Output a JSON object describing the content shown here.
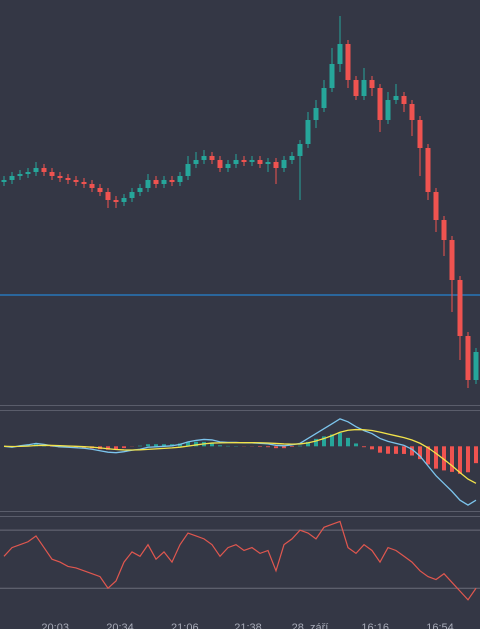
{
  "chart_data": [
    {
      "type": "candlestick",
      "open": [
        54.5,
        55,
        56,
        56.5,
        57,
        58,
        57,
        56,
        55.5,
        55,
        54.5,
        54,
        53,
        52,
        50,
        49.5,
        50.5,
        52,
        53,
        55,
        54,
        55,
        54.5,
        56,
        59,
        60,
        61,
        60,
        58,
        59,
        60,
        59.5,
        60,
        59,
        59.5,
        58,
        60,
        61,
        64,
        70,
        73,
        78,
        84,
        89,
        80,
        76,
        80,
        78,
        70,
        75,
        76,
        74,
        70,
        63,
        52,
        45,
        40,
        30,
        16,
        5
      ],
      "high": [
        56,
        57,
        57.5,
        58,
        59.5,
        59,
        58,
        57,
        56.5,
        56,
        55.5,
        55,
        54,
        53,
        51,
        51.5,
        53,
        54,
        56.5,
        56,
        56,
        56,
        57,
        61,
        62,
        62.5,
        62,
        61,
        60,
        61.5,
        61,
        61,
        61,
        60.5,
        60.5,
        61,
        62,
        65,
        72,
        75,
        80,
        88,
        96,
        90,
        81,
        83,
        81,
        79,
        77,
        79,
        77,
        75,
        71,
        64,
        53,
        46,
        41,
        31,
        17,
        13
      ],
      "low": [
        53.5,
        54,
        55,
        55.5,
        56,
        56,
        55,
        54.5,
        54,
        53.5,
        53,
        52,
        51,
        48,
        48,
        48.5,
        49.5,
        51,
        52,
        53,
        53,
        53.5,
        53.5,
        55,
        58,
        59,
        59,
        57,
        57,
        58,
        58.5,
        58.5,
        58,
        57,
        54,
        57,
        59,
        50,
        63,
        68,
        72,
        77,
        82,
        78,
        75,
        75,
        76,
        67,
        69,
        74,
        72,
        66,
        56,
        50,
        42,
        36,
        22,
        10,
        3,
        4
      ],
      "close": [
        55,
        56,
        56.5,
        57,
        58,
        57,
        56,
        55.5,
        55,
        54.5,
        54,
        53,
        52,
        50,
        49.5,
        50.5,
        52,
        53,
        55,
        54,
        55,
        54.5,
        56,
        59,
        60,
        61,
        60,
        58,
        59,
        60,
        59.5,
        60,
        59,
        59.5,
        58,
        60,
        61,
        64,
        70,
        73,
        78,
        84,
        89,
        80,
        76,
        80,
        78,
        70,
        75,
        76,
        74,
        70,
        63,
        52,
        45,
        40,
        30,
        16,
        5,
        12
      ],
      "up_color": "#26a69a",
      "down_color": "#ef5350",
      "xlim": [
        -0.5,
        59.5
      ],
      "ylim": [
        0,
        100
      ],
      "xticks": [
        {
          "value": 6.4,
          "label": "20:03"
        },
        {
          "value": 14.5,
          "label": "20:34"
        },
        {
          "value": 22.6,
          "label": "21:06"
        },
        {
          "value": 30.5,
          "label": "21:38"
        },
        {
          "value": 38.25,
          "label": "28. září"
        },
        {
          "value": 46.4,
          "label": "16:16"
        },
        {
          "value": 54.5,
          "label": "16:54"
        }
      ],
      "price_line": 26.25,
      "price_line_color": "#2196f3"
    },
    {
      "type": "macd",
      "macd": [
        0,
        -0.1,
        0.05,
        0.15,
        0.3,
        0.2,
        0.05,
        -0.05,
        -0.1,
        -0.15,
        -0.2,
        -0.3,
        -0.45,
        -0.6,
        -0.65,
        -0.55,
        -0.4,
        -0.3,
        -0.1,
        -0.05,
        0,
        0.05,
        0.2,
        0.45,
        0.6,
        0.7,
        0.65,
        0.45,
        0.4,
        0.4,
        0.35,
        0.35,
        0.3,
        0.25,
        0.1,
        0.05,
        0.15,
        0.3,
        0.8,
        1.3,
        1.8,
        2.3,
        2.8,
        2.5,
        2.0,
        1.6,
        1.3,
        0.8,
        0.5,
        0.3,
        0.1,
        -0.3,
        -1.0,
        -2.0,
        -3.0,
        -3.8,
        -4.6,
        -5.5,
        -6.0,
        -5.5
      ],
      "signal": [
        0,
        -0.02,
        -0.01,
        0.02,
        0.08,
        0.1,
        0.09,
        0.06,
        0.03,
        0,
        -0.04,
        -0.09,
        -0.16,
        -0.25,
        -0.33,
        -0.37,
        -0.38,
        -0.36,
        -0.31,
        -0.26,
        -0.21,
        -0.16,
        -0.09,
        0.02,
        0.14,
        0.25,
        0.33,
        0.35,
        0.36,
        0.37,
        0.37,
        0.37,
        0.36,
        0.34,
        0.29,
        0.24,
        0.22,
        0.24,
        0.35,
        0.54,
        0.79,
        1.09,
        1.43,
        1.64,
        1.71,
        1.69,
        1.61,
        1.45,
        1.26,
        1.07,
        0.88,
        0.64,
        0.31,
        -0.15,
        -0.72,
        -1.34,
        -1.99,
        -2.69,
        -3.35,
        -3.78
      ],
      "histogram": [
        0,
        -0.08,
        0.06,
        0.13,
        0.22,
        0.1,
        -0.04,
        -0.11,
        -0.13,
        -0.15,
        -0.16,
        -0.21,
        -0.29,
        -0.35,
        -0.32,
        -0.18,
        -0.02,
        0.06,
        0.21,
        0.21,
        0.21,
        0.21,
        0.29,
        0.43,
        0.46,
        0.45,
        0.32,
        0.1,
        0.04,
        0.03,
        -0.02,
        -0.02,
        -0.06,
        -0.09,
        -0.19,
        -0.19,
        -0.07,
        0.06,
        0.45,
        0.76,
        1.01,
        1.21,
        1.37,
        0.86,
        0.29,
        -0.09,
        -0.31,
        -0.65,
        -0.76,
        -0.77,
        -0.78,
        -0.94,
        -1.31,
        -1.85,
        -2.28,
        -2.46,
        -2.61,
        -2.81,
        -2.65,
        -1.72
      ],
      "macd_color": "#7cc4ec",
      "signal_color": "#f2e34a",
      "hist_up_color": "#26a69a",
      "hist_down_color": "#ef5350",
      "ylim": [
        -6.5,
        3.5
      ]
    },
    {
      "type": "line",
      "values": [
        52,
        58,
        60,
        62,
        66,
        58,
        50,
        48,
        45,
        44,
        42,
        40,
        38,
        30,
        35,
        48,
        55,
        52,
        60,
        50,
        55,
        48,
        60,
        68,
        66,
        64,
        60,
        52,
        58,
        60,
        56,
        58,
        54,
        56,
        42,
        60,
        64,
        70,
        68,
        64,
        72,
        74,
        76,
        58,
        54,
        60,
        56,
        48,
        58,
        56,
        52,
        48,
        42,
        38,
        36,
        40,
        34,
        28,
        22,
        30
      ],
      "color": "#e0574f",
      "ylim": [
        15,
        77
      ],
      "levels": [
        70,
        30
      ]
    }
  ]
}
